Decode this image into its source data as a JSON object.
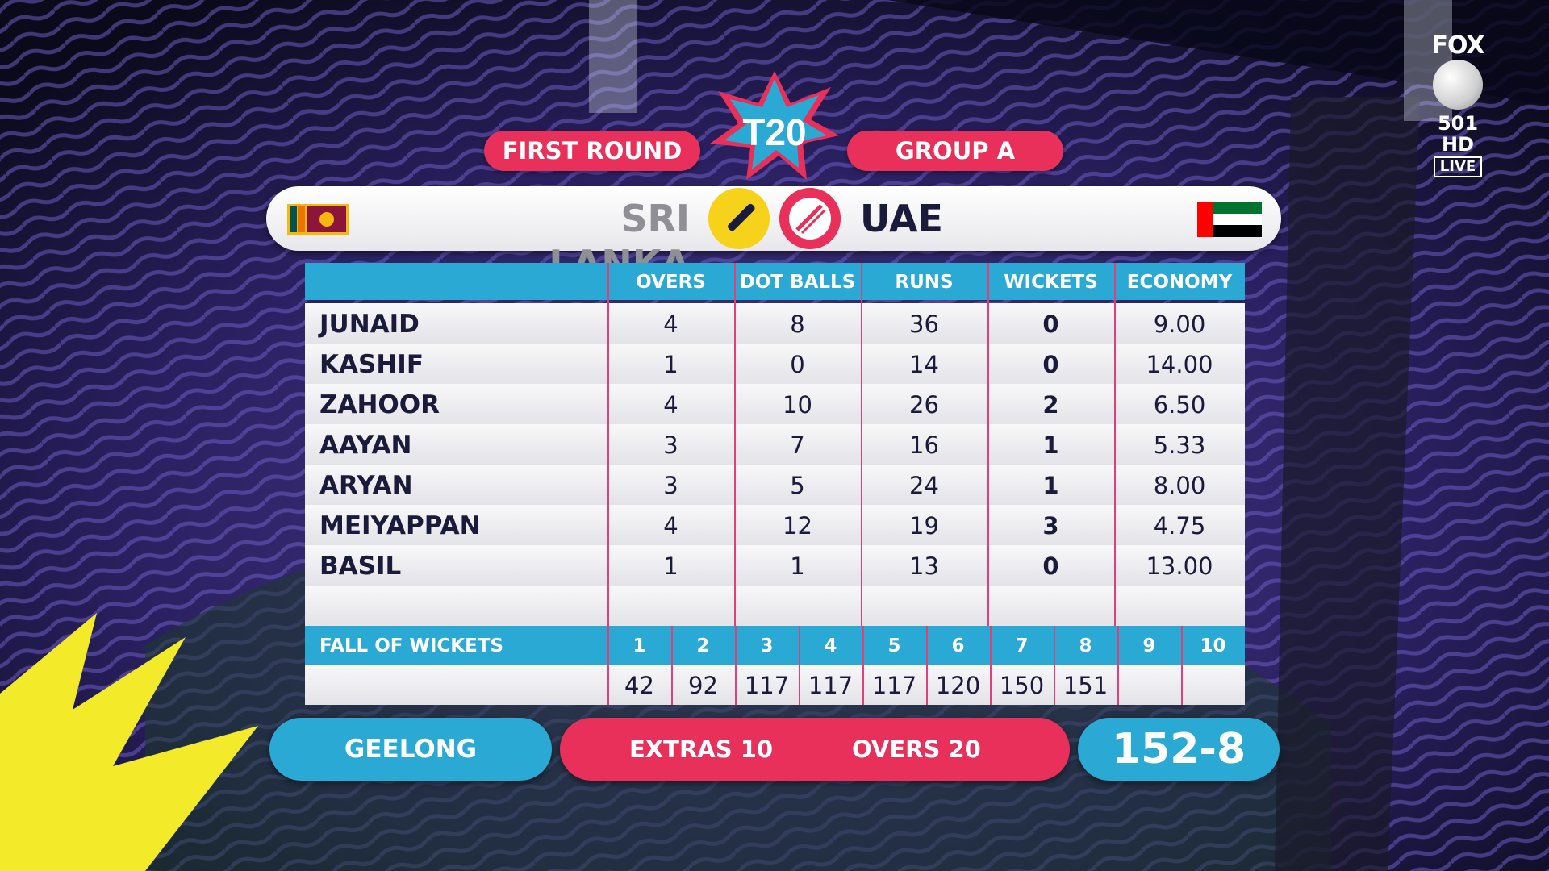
{
  "channel": {
    "brand": "FOX",
    "channel_number": "501",
    "hd_label": "HD",
    "live_label": "LIVE"
  },
  "event": {
    "logo_text": "T20",
    "round": "FIRST ROUND",
    "group": "GROUP A"
  },
  "teams": {
    "batting": "SRI LANKA",
    "bowling": "UAE"
  },
  "table": {
    "headers": [
      "OVERS",
      "DOT BALLS",
      "RUNS",
      "WICKETS",
      "ECONOMY"
    ],
    "rows": [
      {
        "name": "JUNAID",
        "overs": "4",
        "dots": "8",
        "runs": "36",
        "wkts": "0",
        "econ": "9.00"
      },
      {
        "name": "KASHIF",
        "overs": "1",
        "dots": "0",
        "runs": "14",
        "wkts": "0",
        "econ": "14.00"
      },
      {
        "name": "ZAHOOR",
        "overs": "4",
        "dots": "10",
        "runs": "26",
        "wkts": "2",
        "econ": "6.50"
      },
      {
        "name": "AAYAN",
        "overs": "3",
        "dots": "7",
        "runs": "16",
        "wkts": "1",
        "econ": "5.33"
      },
      {
        "name": "ARYAN",
        "overs": "3",
        "dots": "5",
        "runs": "24",
        "wkts": "1",
        "econ": "8.00"
      },
      {
        "name": "MEIYAPPAN",
        "overs": "4",
        "dots": "12",
        "runs": "19",
        "wkts": "3",
        "econ": "4.75"
      },
      {
        "name": "BASIL",
        "overs": "1",
        "dots": "1",
        "runs": "13",
        "wkts": "0",
        "econ": "13.00"
      }
    ]
  },
  "fall_of_wickets": {
    "label": "FALL OF WICKETS",
    "numbers": [
      "1",
      "2",
      "3",
      "4",
      "5",
      "6",
      "7",
      "8",
      "9",
      "10"
    ],
    "scores": [
      "42",
      "92",
      "117",
      "117",
      "117",
      "120",
      "150",
      "151",
      "",
      ""
    ]
  },
  "footer": {
    "venue": "GEELONG",
    "extras_label": "EXTRAS",
    "extras_value": "10",
    "overs_label": "OVERS",
    "overs_value": "20",
    "score": "152-8"
  },
  "colors": {
    "pink": "#e8305a",
    "blue": "#29a9d4",
    "navy": "#1a1a3a",
    "yellow": "#f6d21a"
  }
}
